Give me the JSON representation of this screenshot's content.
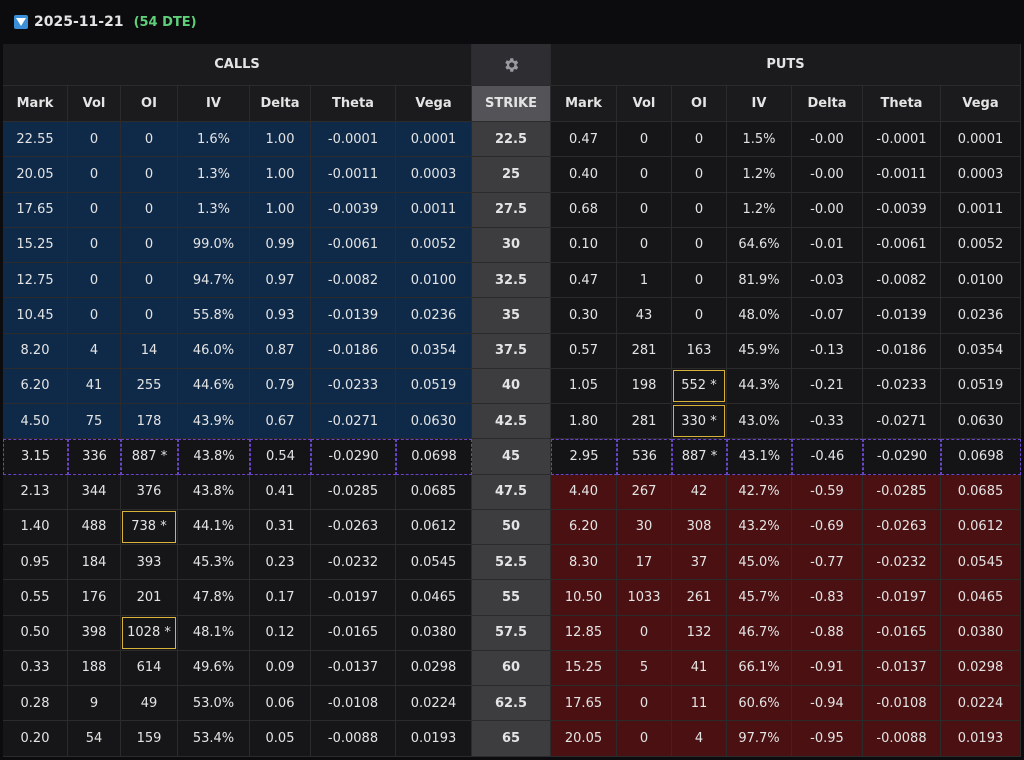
{
  "header": {
    "expiry": "2025-11-21",
    "dte": "(54 DTE)"
  },
  "sections": {
    "calls": "CALLS",
    "puts": "PUTS"
  },
  "table": {
    "columns": [
      "Mark",
      "Vol",
      "OI",
      "IV",
      "Delta",
      "Theta",
      "Vega",
      "STRIKE",
      "Mark",
      "Vol",
      "OI",
      "IV",
      "Delta",
      "Theta",
      "Vega"
    ],
    "atm_row": 9,
    "highlighted": [
      [
        7,
        10
      ],
      [
        8,
        10
      ],
      [
        11,
        2
      ],
      [
        14,
        2
      ]
    ],
    "rows": [
      [
        "22.55",
        "0",
        "0",
        "1.6%",
        "1.00",
        "-0.0001",
        "0.0001",
        "22.5",
        "0.47",
        "0",
        "0",
        "1.5%",
        "-0.00",
        "-0.0001",
        "0.0001"
      ],
      [
        "20.05",
        "0",
        "0",
        "1.3%",
        "1.00",
        "-0.0011",
        "0.0003",
        "25",
        "0.40",
        "0",
        "0",
        "1.2%",
        "-0.00",
        "-0.0011",
        "0.0003"
      ],
      [
        "17.65",
        "0",
        "0",
        "1.3%",
        "1.00",
        "-0.0039",
        "0.0011",
        "27.5",
        "0.68",
        "0",
        "0",
        "1.2%",
        "-0.00",
        "-0.0039",
        "0.0011"
      ],
      [
        "15.25",
        "0",
        "0",
        "99.0%",
        "0.99",
        "-0.0061",
        "0.0052",
        "30",
        "0.10",
        "0",
        "0",
        "64.6%",
        "-0.01",
        "-0.0061",
        "0.0052"
      ],
      [
        "12.75",
        "0",
        "0",
        "94.7%",
        "0.97",
        "-0.0082",
        "0.0100",
        "32.5",
        "0.47",
        "1",
        "0",
        "81.9%",
        "-0.03",
        "-0.0082",
        "0.0100"
      ],
      [
        "10.45",
        "0",
        "0",
        "55.8%",
        "0.93",
        "-0.0139",
        "0.0236",
        "35",
        "0.30",
        "43",
        "0",
        "48.0%",
        "-0.07",
        "-0.0139",
        "0.0236"
      ],
      [
        "8.20",
        "4",
        "14",
        "46.0%",
        "0.87",
        "-0.0186",
        "0.0354",
        "37.5",
        "0.57",
        "281",
        "163",
        "45.9%",
        "-0.13",
        "-0.0186",
        "0.0354"
      ],
      [
        "6.20",
        "41",
        "255",
        "44.6%",
        "0.79",
        "-0.0233",
        "0.0519",
        "40",
        "1.05",
        "198",
        "552 *",
        "44.3%",
        "-0.21",
        "-0.0233",
        "0.0519"
      ],
      [
        "4.50",
        "75",
        "178",
        "43.9%",
        "0.67",
        "-0.0271",
        "0.0630",
        "42.5",
        "1.80",
        "281",
        "330 *",
        "43.0%",
        "-0.33",
        "-0.0271",
        "0.0630"
      ],
      [
        "3.15",
        "336",
        "887 *",
        "43.8%",
        "0.54",
        "-0.0290",
        "0.0698",
        "45",
        "2.95",
        "536",
        "887 *",
        "43.1%",
        "-0.46",
        "-0.0290",
        "0.0698"
      ],
      [
        "2.13",
        "344",
        "376",
        "43.8%",
        "0.41",
        "-0.0285",
        "0.0685",
        "47.5",
        "4.40",
        "267",
        "42",
        "42.7%",
        "-0.59",
        "-0.0285",
        "0.0685"
      ],
      [
        "1.40",
        "488",
        "738 *",
        "44.1%",
        "0.31",
        "-0.0263",
        "0.0612",
        "50",
        "6.20",
        "30",
        "308",
        "43.2%",
        "-0.69",
        "-0.0263",
        "0.0612"
      ],
      [
        "0.95",
        "184",
        "393",
        "45.3%",
        "0.23",
        "-0.0232",
        "0.0545",
        "52.5",
        "8.30",
        "17",
        "37",
        "45.0%",
        "-0.77",
        "-0.0232",
        "0.0545"
      ],
      [
        "0.55",
        "176",
        "201",
        "47.8%",
        "0.17",
        "-0.0197",
        "0.0465",
        "55",
        "10.50",
        "1033",
        "261",
        "45.7%",
        "-0.83",
        "-0.0197",
        "0.0465"
      ],
      [
        "0.50",
        "398",
        "1028 *",
        "48.1%",
        "0.12",
        "-0.0165",
        "0.0380",
        "57.5",
        "12.85",
        "0",
        "132",
        "46.7%",
        "-0.88",
        "-0.0165",
        "0.0380"
      ],
      [
        "0.33",
        "188",
        "614",
        "49.6%",
        "0.09",
        "-0.0137",
        "0.0298",
        "60",
        "15.25",
        "5",
        "41",
        "66.1%",
        "-0.91",
        "-0.0137",
        "0.0298"
      ],
      [
        "0.28",
        "9",
        "49",
        "53.0%",
        "0.06",
        "-0.0108",
        "0.0224",
        "62.5",
        "17.65",
        "0",
        "11",
        "60.6%",
        "-0.94",
        "-0.0108",
        "0.0224"
      ],
      [
        "0.20",
        "54",
        "159",
        "53.4%",
        "0.05",
        "-0.0088",
        "0.0193",
        "65",
        "20.05",
        "0",
        "4",
        "97.7%",
        "-0.95",
        "-0.0088",
        "0.0193"
      ]
    ]
  }
}
